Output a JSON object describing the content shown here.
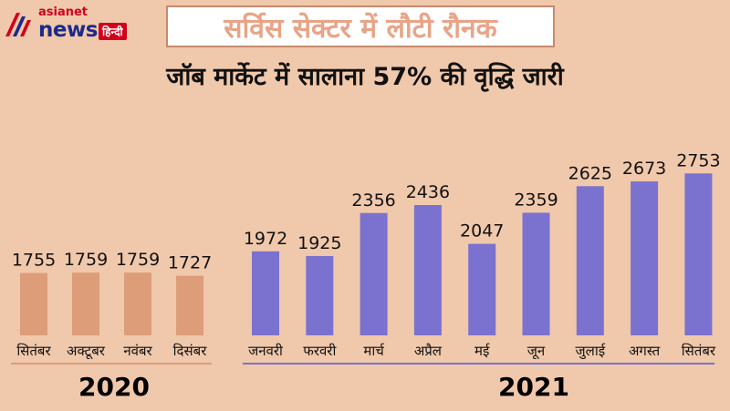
{
  "logo": {
    "top": "asianet",
    "main": "news",
    "lang": "हिन्दी"
  },
  "title": "सर्विस सेक्टर में लौटी रौनक",
  "subtitle": "जॉब मार्केट में सालाना 57% की वृद्धि जारी",
  "colors": {
    "bar2020": "#dd9d79",
    "bar2021": "#7b72cf",
    "line2020": "#dd9d79",
    "line2021": "#7b72cf",
    "background": "#f0c8ab"
  },
  "chart_data": [
    {
      "type": "bar",
      "title": "2020",
      "categories": [
        "सितंबर",
        "अक्टूबर",
        "नवंबर",
        "दिसंबर"
      ],
      "values": [
        1755,
        1759,
        1759,
        1727
      ]
    },
    {
      "type": "bar",
      "title": "2021",
      "categories": [
        "जनवरी",
        "फरवरी",
        "मार्च",
        "अप्रैल",
        "मई",
        "जून",
        "जुलाई",
        "अगस्त",
        "सितंबर"
      ],
      "values": [
        1972,
        1925,
        2356,
        2436,
        2047,
        2359,
        2625,
        2673,
        2753
      ]
    }
  ]
}
